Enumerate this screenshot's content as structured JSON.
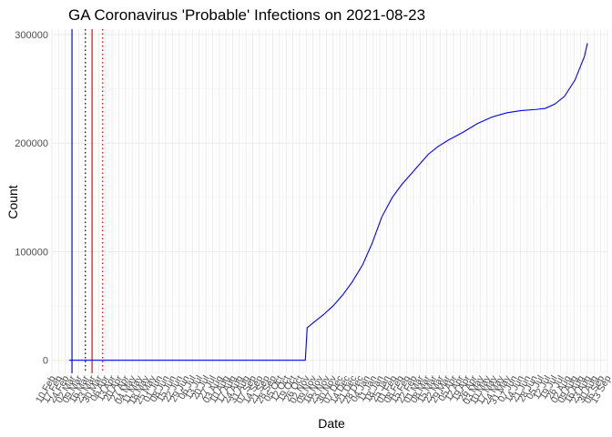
{
  "chart_data": {
    "type": "line",
    "title": "GA Coronavirus 'Probable' Infections on 2021-08-23",
    "xlabel": "Date",
    "ylabel": "Count",
    "x_axis_type": "date",
    "xlim": [
      "2020-02-10",
      "2021-09-13"
    ],
    "ylim": [
      -12000,
      305000
    ],
    "y_ticks": [
      0,
      100000,
      200000,
      300000
    ],
    "y_tick_labels": [
      "0",
      "100000",
      "200000",
      "300000"
    ],
    "x_ticks": [
      "2020-02-10",
      "2020-02-17",
      "2020-02-24",
      "2020-03-02",
      "2020-03-09",
      "2020-03-16",
      "2020-03-23",
      "2020-03-30",
      "2020-04-06",
      "2020-04-13",
      "2020-04-20",
      "2020-04-27",
      "2020-05-04",
      "2020-05-11",
      "2020-05-18",
      "2020-05-25",
      "2020-06-01",
      "2020-06-08",
      "2020-06-15",
      "2020-06-22",
      "2020-06-29",
      "2020-07-06",
      "2020-07-13",
      "2020-07-20",
      "2020-07-27",
      "2020-08-03",
      "2020-08-10",
      "2020-08-17",
      "2020-08-24",
      "2020-08-31",
      "2020-09-07",
      "2020-09-14",
      "2020-09-21",
      "2020-09-28",
      "2020-10-05",
      "2020-10-12",
      "2020-10-19",
      "2020-10-26",
      "2020-11-02",
      "2020-11-09",
      "2020-11-16",
      "2020-11-23",
      "2020-11-30",
      "2020-12-07",
      "2020-12-14",
      "2020-12-21",
      "2020-12-28",
      "2021-01-04",
      "2021-01-11",
      "2021-01-18",
      "2021-01-25",
      "2021-02-01",
      "2021-02-08",
      "2021-02-15",
      "2021-02-22",
      "2021-03-01",
      "2021-03-08",
      "2021-03-15",
      "2021-03-22",
      "2021-03-29",
      "2021-04-05",
      "2021-04-12",
      "2021-04-19",
      "2021-04-26",
      "2021-05-03",
      "2021-05-10",
      "2021-05-17",
      "2021-05-24",
      "2021-05-31",
      "2021-06-07",
      "2021-06-14",
      "2021-06-21",
      "2021-06-28",
      "2021-07-05",
      "2021-07-12",
      "2021-07-19",
      "2021-07-26",
      "2021-08-02",
      "2021-08-09",
      "2021-08-16",
      "2021-08-23",
      "2021-08-30",
      "2021-09-06",
      "2021-09-13"
    ],
    "x_tick_labels": [
      "10 Feb",
      "17 Feb",
      "24 Feb",
      "02 Mar",
      "09 Mar",
      "16 Mar",
      "23 Mar",
      "30 Mar",
      "06 Apr",
      "13 Apr",
      "20 Apr",
      "27 Apr",
      "04 May",
      "11 May",
      "18 May",
      "25 May",
      "01 Jun",
      "08 Jun",
      "15 Jun",
      "22 Jun",
      "29 Jun",
      "06 Jul",
      "13 Jul",
      "20 Jul",
      "27 Jul",
      "03 Aug",
      "10 Aug",
      "17 Aug",
      "24 Aug",
      "31 Aug",
      "07 Sep",
      "14 Sep",
      "21 Sep",
      "28 Sep",
      "05 Oct",
      "12 Oct",
      "19 Oct",
      "26 Oct",
      "02 Nov",
      "09 Nov",
      "16 Nov",
      "23 Nov",
      "30 Nov",
      "07 Dec",
      "14 Dec",
      "21 Dec",
      "28 Dec",
      "04 Jan",
      "11 Jan",
      "18 Jan",
      "25 Jan",
      "01 Feb",
      "08 Feb",
      "15 Feb",
      "22 Feb",
      "01 Mar",
      "08 Mar",
      "15 Mar",
      "22 Mar",
      "29 Mar",
      "05 Apr",
      "12 Apr",
      "19 Apr",
      "26 Apr",
      "03 May",
      "10 May",
      "17 May",
      "24 May",
      "31 May",
      "07 Jun",
      "14 Jun",
      "21 Jun",
      "28 Jun",
      "05 Jul",
      "12 Jul",
      "19 Jul",
      "26 Jul",
      "02 Aug",
      "09 Aug",
      "16 Aug",
      "23 Aug",
      "30 Aug",
      "06 Sep",
      "13 Sep"
    ],
    "series": [
      {
        "color": "#0000ff",
        "x": [
          "2020-02-28",
          "2020-03-20",
          "2020-04-15",
          "2020-05-15",
          "2020-06-15",
          "2020-07-15",
          "2020-08-15",
          "2020-09-15",
          "2020-10-15",
          "2020-11-01",
          "2020-11-03",
          "2020-11-10",
          "2020-11-20",
          "2020-11-30",
          "2020-12-10",
          "2020-12-20",
          "2020-12-31",
          "2021-01-10",
          "2021-01-20",
          "2021-01-31",
          "2021-02-10",
          "2021-02-20",
          "2021-02-28",
          "2021-03-10",
          "2021-03-20",
          "2021-03-31",
          "2021-04-15",
          "2021-04-30",
          "2021-05-15",
          "2021-05-31",
          "2021-06-15",
          "2021-06-30",
          "2021-07-10",
          "2021-07-20",
          "2021-07-30",
          "2021-08-10",
          "2021-08-20",
          "2021-08-23"
        ],
        "y": [
          0,
          0,
          0,
          0,
          0,
          0,
          0,
          0,
          0,
          0,
          30000,
          35000,
          42000,
          50000,
          60000,
          72000,
          88000,
          108000,
          132000,
          150000,
          162000,
          172000,
          180000,
          190000,
          197000,
          203000,
          210000,
          218000,
          224000,
          228000,
          230000,
          231000,
          232000,
          236000,
          243000,
          258000,
          280000,
          292000
        ]
      }
    ],
    "reference_lines": [
      {
        "x": "2020-03-02",
        "color": "#0000ff",
        "style": "solid"
      },
      {
        "x": "2020-03-16",
        "color": "#000000",
        "style": "dotted"
      },
      {
        "x": "2020-03-23",
        "color": "#ff0000",
        "style": "solid"
      },
      {
        "x": "2020-04-03",
        "color": "#ff0000",
        "style": "dotted"
      }
    ],
    "grid": true,
    "legend": "none"
  }
}
